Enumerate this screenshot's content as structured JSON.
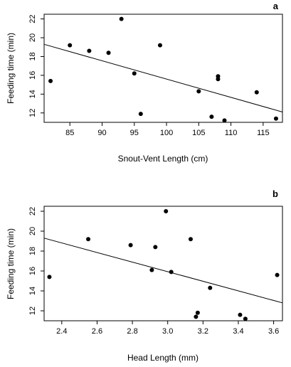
{
  "chart_data": [
    {
      "type": "scatter",
      "panel_label": "a",
      "xlabel": "Snout-Vent Length (cm)",
      "ylabel": "Feeding time (min)",
      "xlim": [
        81,
        118
      ],
      "ylim": [
        11,
        22.5
      ],
      "xticks": [
        85,
        90,
        95,
        100,
        105,
        110,
        115
      ],
      "yticks": [
        12,
        14,
        16,
        18,
        20,
        22
      ],
      "grid": false,
      "points": [
        {
          "x": 82,
          "y": 15.4
        },
        {
          "x": 85,
          "y": 19.2
        },
        {
          "x": 88,
          "y": 18.6
        },
        {
          "x": 91,
          "y": 18.4
        },
        {
          "x": 93,
          "y": 22.0
        },
        {
          "x": 95,
          "y": 16.2
        },
        {
          "x": 96,
          "y": 11.9
        },
        {
          "x": 99,
          "y": 19.2
        },
        {
          "x": 105,
          "y": 14.3
        },
        {
          "x": 107,
          "y": 11.6
        },
        {
          "x": 108,
          "y": 15.9
        },
        {
          "x": 108,
          "y": 15.6
        },
        {
          "x": 109,
          "y": 11.2
        },
        {
          "x": 114,
          "y": 14.2
        },
        {
          "x": 117,
          "y": 11.4
        }
      ],
      "fit_line": {
        "x": [
          81,
          118
        ],
        "y": [
          19.3,
          12.1
        ]
      }
    },
    {
      "type": "scatter",
      "panel_label": "b",
      "xlabel": "Head Length (mm)",
      "ylabel": "Feeding time (min)",
      "xlim": [
        2.3,
        3.65
      ],
      "ylim": [
        11,
        22.5
      ],
      "xticks": [
        2.4,
        2.6,
        2.8,
        3.0,
        3.2,
        3.4,
        3.6
      ],
      "xtick_labels": [
        "2.4",
        "2.6",
        "2.8",
        "3.0",
        "3.2",
        "3.4",
        "3.6"
      ],
      "yticks": [
        12,
        14,
        16,
        18,
        20,
        22
      ],
      "grid": false,
      "points": [
        {
          "x": 2.33,
          "y": 15.4
        },
        {
          "x": 2.55,
          "y": 19.2
        },
        {
          "x": 2.79,
          "y": 18.6
        },
        {
          "x": 2.91,
          "y": 16.1
        },
        {
          "x": 2.93,
          "y": 18.4
        },
        {
          "x": 2.99,
          "y": 22.0
        },
        {
          "x": 3.02,
          "y": 15.9
        },
        {
          "x": 3.13,
          "y": 19.2
        },
        {
          "x": 3.16,
          "y": 11.4
        },
        {
          "x": 3.17,
          "y": 11.8
        },
        {
          "x": 3.24,
          "y": 14.3
        },
        {
          "x": 3.41,
          "y": 11.6
        },
        {
          "x": 3.44,
          "y": 11.2
        },
        {
          "x": 3.62,
          "y": 15.6
        }
      ],
      "fit_line": {
        "x": [
          2.3,
          3.65
        ],
        "y": [
          19.3,
          12.8
        ]
      }
    }
  ]
}
